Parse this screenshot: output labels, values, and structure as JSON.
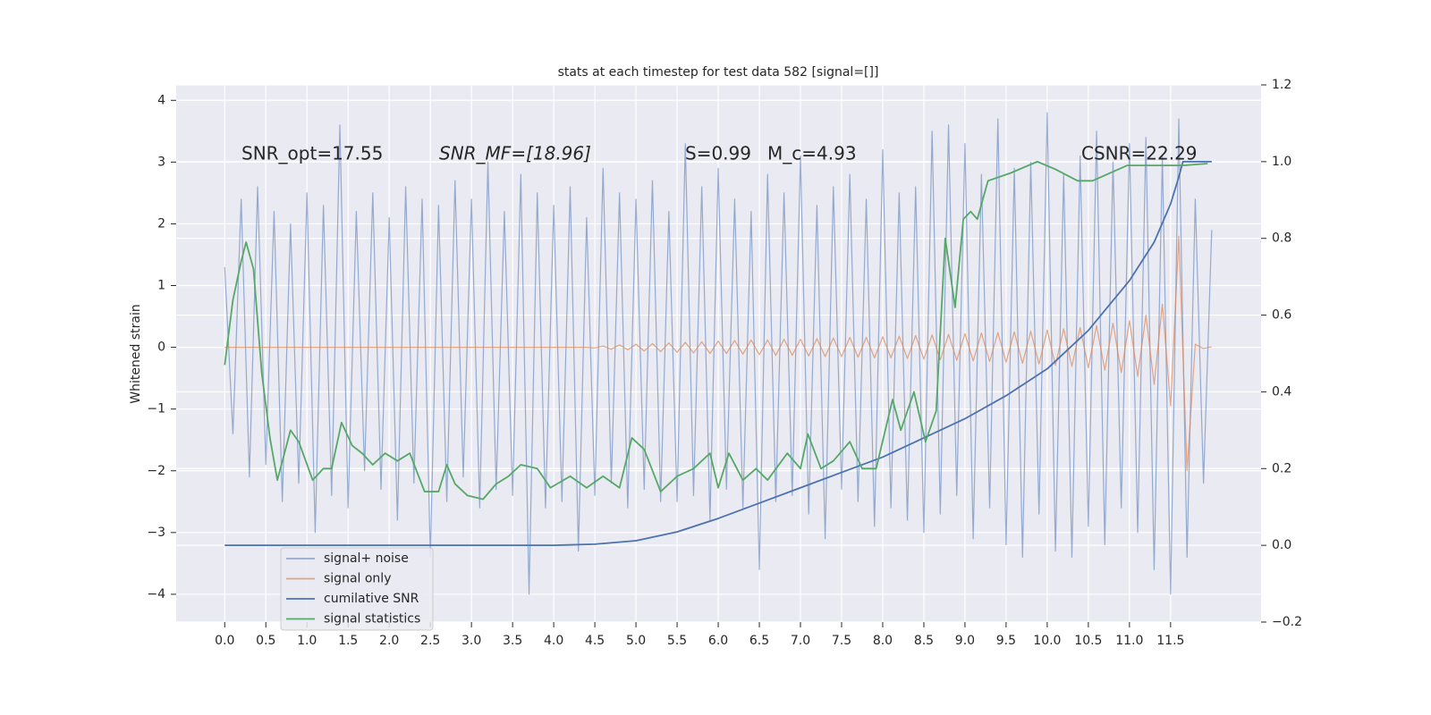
{
  "chart_data": {
    "type": "line",
    "title": "stats at each timestep for test data 582 [signal=[]]",
    "ylabel": "Whitened strain",
    "annotations": [
      "SNR_opt=17.55",
      "SNR_MF=[18.96]",
      "S=0.99",
      "M_c=4.93",
      "CSNR=22.29"
    ],
    "grid": true,
    "legend": "lower left",
    "xlim": [
      -0.59,
      12.6
    ],
    "ylim": [
      -4.45,
      4.25
    ],
    "y2lim": [
      -0.2,
      1.2
    ],
    "xticks": [
      {
        "value": 0,
        "label": "0.0"
      },
      0.5,
      {
        "value": 1,
        "label": "1.0"
      },
      1.5,
      {
        "value": 2,
        "label": "2.0"
      },
      2.5,
      {
        "value": 3,
        "label": "3.0"
      },
      3.5,
      {
        "value": 4,
        "label": "4.0"
      },
      4.5,
      {
        "value": 5,
        "label": "5.0"
      },
      5.5,
      {
        "value": 6,
        "label": "6.0"
      },
      6.5,
      {
        "value": 7,
        "label": "7.0"
      },
      7.5,
      {
        "value": 8,
        "label": "8.0"
      },
      8.5,
      {
        "value": 9,
        "label": "9.0"
      },
      9.5,
      {
        "value": 10,
        "label": "10.0"
      },
      10.5,
      {
        "value": 11,
        "label": "11.0"
      },
      11.5
    ],
    "yticks": [
      {
        "value": -4,
        "label": "−4"
      },
      {
        "value": -3,
        "label": "−3"
      },
      {
        "value": -2,
        "label": "−2"
      },
      {
        "value": -1,
        "label": "−1"
      },
      0,
      1,
      2,
      3,
      4
    ],
    "y2ticks": [
      {
        "value": -0.2,
        "label": "−0.2"
      },
      {
        "value": 0,
        "label": "0.0"
      },
      0.2,
      0.4,
      0.6,
      0.8,
      {
        "value": 1,
        "label": "1.0"
      },
      1.2
    ],
    "x": [
      0,
      0.1,
      0.2,
      0.3,
      0.4,
      0.5,
      0.6,
      0.7,
      0.8,
      0.9,
      1.0,
      1.1,
      1.2,
      1.3,
      1.4,
      1.5,
      1.6,
      1.7,
      1.8,
      1.9,
      2.0,
      2.1,
      2.2,
      2.3,
      2.4,
      2.5,
      2.6,
      2.7,
      2.8,
      2.9,
      3.0,
      3.1,
      3.2,
      3.3,
      3.4,
      3.5,
      3.6,
      3.7,
      3.8,
      3.9,
      4.0,
      4.1,
      4.2,
      4.3,
      4.4,
      4.5,
      4.6,
      4.7,
      4.8,
      4.9,
      5.0,
      5.1,
      5.2,
      5.3,
      5.4,
      5.5,
      5.6,
      5.7,
      5.8,
      5.9,
      6.0,
      6.1,
      6.2,
      6.3,
      6.4,
      6.5,
      6.6,
      6.7,
      6.8,
      6.9,
      7.0,
      7.1,
      7.2,
      7.3,
      7.4,
      7.5,
      7.6,
      7.7,
      7.8,
      7.9,
      8.0,
      8.1,
      8.2,
      8.3,
      8.4,
      8.5,
      8.6,
      8.7,
      8.8,
      8.9,
      9.0,
      9.1,
      9.2,
      9.3,
      9.4,
      9.5,
      9.6,
      9.7,
      9.8,
      9.9,
      10.0,
      10.1,
      10.2,
      10.3,
      10.4,
      10.5,
      10.6,
      10.7,
      10.8,
      10.9,
      11.0,
      11.1,
      11.2,
      11.3,
      11.4,
      11.5,
      11.6,
      11.7,
      11.8,
      11.9,
      12.0
    ],
    "series": [
      {
        "name": "signal+ noise",
        "color": "#4c72b0",
        "opacity": 0.55,
        "values": [
          1.3,
          -1.4,
          2.4,
          -2.1,
          2.6,
          -1.9,
          2.2,
          -2.5,
          2.0,
          -2.2,
          2.5,
          -3.0,
          2.3,
          -2.4,
          3.6,
          -2.6,
          2.2,
          -2.0,
          2.5,
          -2.3,
          2.1,
          -2.8,
          2.6,
          -2.2,
          2.4,
          -3.4,
          2.3,
          -2.5,
          2.7,
          -2.1,
          2.4,
          -2.6,
          3.0,
          -2.3,
          2.2,
          -2.4,
          2.8,
          -4.0,
          2.5,
          -2.6,
          2.3,
          -2.5,
          2.6,
          -3.3,
          2.1,
          -2.4,
          2.9,
          -2.2,
          2.5,
          -2.6,
          2.4,
          -2.3,
          2.7,
          -2.5,
          2.2,
          -2.5,
          3.3,
          -2.4,
          2.6,
          -2.8,
          2.9,
          -2.3,
          2.4,
          -2.6,
          2.2,
          -3.6,
          2.8,
          -2.5,
          2.5,
          -2.4,
          3.1,
          -2.7,
          2.3,
          -3.1,
          2.6,
          -2.3,
          2.8,
          -2.5,
          2.4,
          -2.9,
          3.2,
          -2.6,
          2.5,
          -2.8,
          2.6,
          -3.0,
          3.5,
          -2.7,
          3.6,
          -2.4,
          3.3,
          -3.1,
          2.8,
          -2.6,
          3.7,
          -3.2,
          2.9,
          -3.4,
          3.0,
          -2.7,
          3.8,
          -3.3,
          2.8,
          -3.4,
          3.1,
          -2.9,
          3.5,
          -3.2,
          3.0,
          -2.6,
          3.3,
          -3.0,
          3.4,
          -3.6,
          3.1,
          -4.0,
          3.7,
          -3.4,
          2.4,
          -2.2,
          1.9
        ]
      },
      {
        "name": "signal only",
        "color": "#dd8452",
        "opacity": 0.7,
        "values": [
          0,
          0,
          0,
          0,
          0,
          0,
          0,
          0,
          0,
          0,
          0,
          0,
          0,
          0,
          0,
          0,
          0,
          0,
          0,
          0,
          0,
          0,
          0,
          0,
          0,
          0,
          0,
          0,
          0,
          0,
          0,
          0,
          0,
          0,
          0,
          0,
          0,
          0,
          0,
          0,
          0,
          0,
          0,
          0,
          0,
          -0.01,
          0.02,
          -0.03,
          0.04,
          -0.04,
          0.05,
          -0.06,
          0.06,
          -0.07,
          0.07,
          -0.08,
          0.08,
          -0.09,
          0.09,
          -0.1,
          0.1,
          -0.1,
          0.11,
          -0.11,
          0.12,
          -0.12,
          0.12,
          -0.13,
          0.13,
          -0.13,
          0.13,
          -0.14,
          0.14,
          -0.15,
          0.15,
          -0.15,
          0.16,
          -0.16,
          0.16,
          -0.17,
          0.17,
          -0.17,
          0.18,
          -0.18,
          0.19,
          -0.19,
          0.2,
          -0.2,
          0.21,
          -0.21,
          0.22,
          -0.22,
          0.23,
          -0.23,
          0.24,
          -0.24,
          0.25,
          -0.26,
          0.26,
          -0.27,
          0.28,
          -0.29,
          0.3,
          -0.31,
          0.32,
          -0.33,
          0.35,
          -0.37,
          0.39,
          -0.41,
          0.43,
          -0.47,
          0.52,
          -0.6,
          0.7,
          -0.95,
          1.8,
          -2.0,
          0.05,
          -0.02,
          0.01
        ]
      },
      {
        "name": "cumilative SNR",
        "color": "#4c72b0",
        "axis": "y2",
        "x": [
          0,
          4.0,
          4.5,
          5.0,
          5.5,
          6.0,
          6.5,
          7.0,
          7.5,
          8.0,
          8.5,
          9.0,
          9.5,
          10.0,
          10.5,
          11.0,
          11.3,
          11.5,
          11.6,
          11.65,
          12.0
        ],
        "values": [
          0,
          0,
          0.003,
          0.012,
          0.035,
          0.07,
          0.11,
          0.15,
          0.19,
          0.23,
          0.28,
          0.33,
          0.39,
          0.46,
          0.56,
          0.69,
          0.79,
          0.89,
          0.96,
          1.0,
          1.0
        ]
      },
      {
        "name": "signal statistics",
        "color": "#55a868",
        "axis": "y2",
        "x": [
          0,
          0.1,
          0.2,
          0.26,
          0.35,
          0.45,
          0.55,
          0.64,
          0.8,
          0.9,
          1.07,
          1.2,
          1.3,
          1.42,
          1.55,
          1.67,
          1.8,
          1.95,
          2.1,
          2.25,
          2.43,
          2.6,
          2.7,
          2.8,
          2.95,
          3.14,
          3.3,
          3.45,
          3.6,
          3.8,
          3.96,
          4.2,
          4.4,
          4.6,
          4.8,
          4.95,
          5.1,
          5.3,
          5.5,
          5.7,
          5.9,
          6.0,
          6.13,
          6.3,
          6.46,
          6.6,
          6.84,
          7.0,
          7.09,
          7.25,
          7.4,
          7.6,
          7.75,
          7.92,
          8.12,
          8.22,
          8.38,
          8.52,
          8.65,
          8.76,
          8.88,
          8.98,
          9.07,
          9.15,
          9.28,
          9.55,
          9.88,
          10.1,
          10.37,
          10.55,
          10.97,
          11.3,
          11.65,
          11.95
        ],
        "values": [
          0.47,
          0.64,
          0.74,
          0.79,
          0.72,
          0.45,
          0.28,
          0.17,
          0.3,
          0.27,
          0.17,
          0.2,
          0.2,
          0.32,
          0.26,
          0.24,
          0.21,
          0.24,
          0.22,
          0.24,
          0.14,
          0.14,
          0.21,
          0.16,
          0.13,
          0.12,
          0.16,
          0.18,
          0.21,
          0.2,
          0.15,
          0.18,
          0.15,
          0.18,
          0.15,
          0.28,
          0.25,
          0.14,
          0.18,
          0.2,
          0.24,
          0.15,
          0.24,
          0.17,
          0.2,
          0.17,
          0.24,
          0.2,
          0.29,
          0.2,
          0.22,
          0.27,
          0.2,
          0.2,
          0.38,
          0.3,
          0.4,
          0.27,
          0.35,
          0.8,
          0.62,
          0.85,
          0.87,
          0.85,
          0.95,
          0.97,
          1.0,
          0.98,
          0.95,
          0.95,
          0.99,
          0.99,
          0.99,
          0.995
        ]
      }
    ]
  }
}
